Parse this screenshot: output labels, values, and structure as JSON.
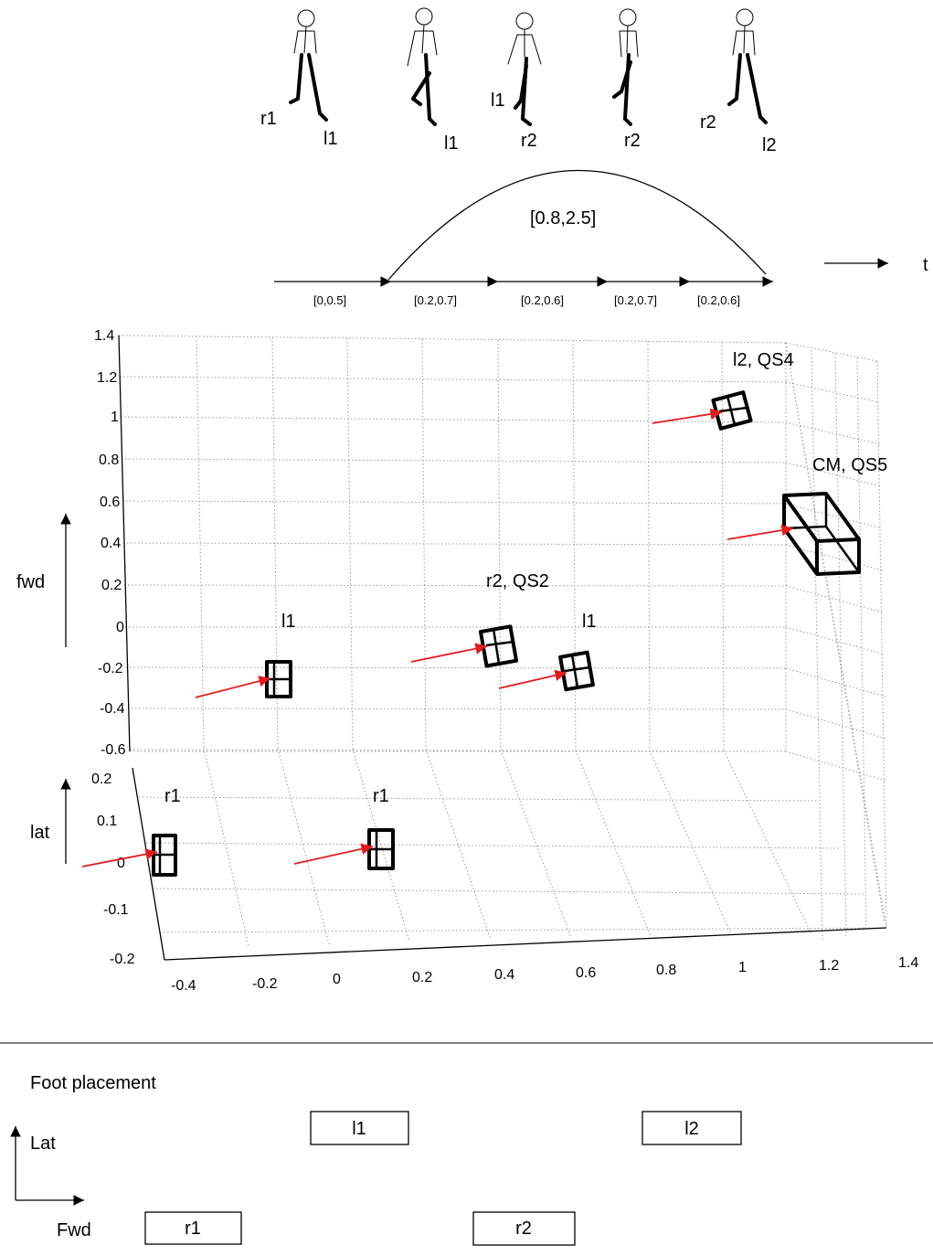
{
  "figures": {
    "labels": [
      {
        "id": "fig1-r",
        "text": "r1"
      },
      {
        "id": "fig1-l",
        "text": "l1"
      },
      {
        "id": "fig2-l",
        "text": "l1"
      },
      {
        "id": "fig3-l",
        "text": "l1"
      },
      {
        "id": "fig3-r",
        "text": "r2"
      },
      {
        "id": "fig4-r",
        "text": "r2"
      },
      {
        "id": "fig5-r",
        "text": "r2"
      },
      {
        "id": "fig5-l",
        "text": "l2"
      }
    ]
  },
  "timeline": {
    "arc_label": "[0.8,2.5]",
    "intervals": [
      "[0,0.5]",
      "[0.2,0.7]",
      "[0.2,0.6]",
      "[0.2,0.7]",
      "[0.2,0.6]"
    ],
    "time_label": "t"
  },
  "plot3d": {
    "fwd_label": "fwd",
    "lat_label": "lat",
    "fwd_ticks": [
      "1.4",
      "1.2",
      "1",
      "0.8",
      "0.6",
      "0.4",
      "0.2",
      "0",
      "-0.2",
      "-0.4",
      "-0.6"
    ],
    "lat_ticks": [
      "0.2",
      "0.1",
      "0",
      "-0.1",
      "-0.2"
    ],
    "x_ticks": [
      "-0.4",
      "-0.2",
      "0",
      "0.2",
      "0.4",
      "0.6",
      "0.8",
      "1",
      "1.2",
      "1.4"
    ],
    "markers": [
      {
        "id": "r1a",
        "label": "r1"
      },
      {
        "id": "r1b",
        "label": "r1"
      },
      {
        "id": "l1a",
        "label": "l1"
      },
      {
        "id": "r2",
        "label": "r2, QS2"
      },
      {
        "id": "l1b",
        "label": "l1"
      },
      {
        "id": "l2",
        "label": "l2, QS4"
      },
      {
        "id": "cm",
        "label": "CM, QS5"
      }
    ],
    "arrow_color": "#e41a1c"
  },
  "foot_placement": {
    "title": "Foot placement",
    "lat_label": "Lat",
    "fwd_label": "Fwd",
    "boxes": [
      "l1",
      "l2",
      "r1",
      "r2"
    ]
  }
}
